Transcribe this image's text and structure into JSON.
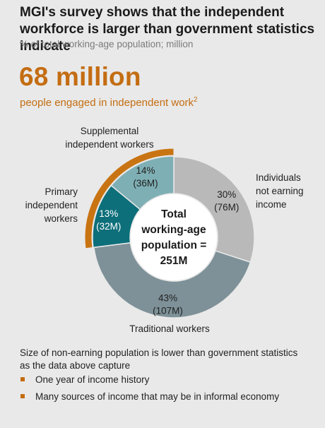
{
  "header": {
    "title": "MGI's survey shows that the independent workforce is larger than government statistics indicate",
    "subtitle": "% of total working-age population; million"
  },
  "highlight": {
    "value": "68 million",
    "caption": "people engaged in independent work",
    "footnote_mark": "2"
  },
  "chart_data": {
    "type": "pie",
    "donut": true,
    "categories": [
      "Individuals not earning income",
      "Traditional workers",
      "Primary independent workers",
      "Supplemental independent workers"
    ],
    "values": [
      30,
      43,
      13,
      14
    ],
    "value_labels": [
      "30%",
      "43%",
      "13%",
      "14%"
    ],
    "millions": [
      "(76M)",
      "(107M)",
      "(32M)",
      "(36M)"
    ],
    "colors": [
      "#b9b9b9",
      "#7e9198",
      "#0d6f7a",
      "#7eafb4"
    ],
    "highlight_color": "#c97412",
    "center_label": [
      "Total",
      "working-age",
      "population =",
      "251M"
    ],
    "labels": {
      "not_earning": [
        "Individuals",
        "not earning",
        "income"
      ],
      "traditional": [
        "Traditional workers"
      ],
      "primary": [
        "Primary",
        "independent",
        "workers"
      ],
      "supplemental": [
        "Supplemental",
        "independent workers"
      ]
    }
  },
  "note": {
    "text": "Size of non-earning population is lower than government statistics as the data above capture",
    "bullets": [
      "One year of income history",
      "Many sources of income that may be in informal economy"
    ]
  }
}
